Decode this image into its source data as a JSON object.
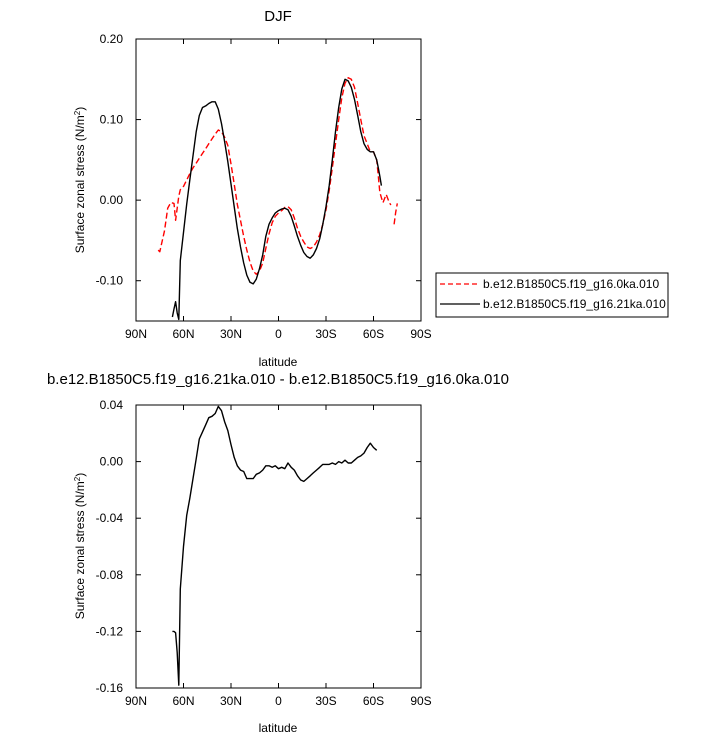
{
  "chart_data": [
    {
      "type": "line",
      "title": "DJF",
      "xlabel": "latitude",
      "ylabel": "Surface zonal stress (N/m²)",
      "ylabel_base": "Surface zonal stress (N/m",
      "ylabel_sup": "2",
      "ylabel_close": ")",
      "xlim": [
        90,
        -90
      ],
      "ylim": [
        -0.15,
        0.2
      ],
      "xticks": [
        90,
        60,
        30,
        0,
        -30,
        -60,
        -90
      ],
      "xtick_labels": [
        "90N",
        "60N",
        "30N",
        "0",
        "30S",
        "60S",
        "90S"
      ],
      "yticks": [
        0.2,
        0.1,
        0.0,
        -0.1
      ],
      "ytick_labels": [
        "0.20",
        "0.10",
        "0.00",
        "-0.10"
      ],
      "grid": false,
      "legend_position": "right",
      "series": [
        {
          "name": "b.e12.B1850C5.f19_g16.0ka.010",
          "color": "#ff0000",
          "dash": "dashed",
          "x": [
            76,
            75,
            72,
            70,
            68,
            66,
            65,
            64,
            63,
            62,
            60,
            58,
            56,
            54,
            52,
            50,
            48,
            46,
            44,
            42,
            40,
            38,
            36,
            34,
            32,
            30,
            28,
            26,
            24,
            22,
            20,
            18,
            16,
            14,
            12,
            10,
            8,
            6,
            4,
            2,
            0,
            -2,
            -4,
            -6,
            -8,
            -10,
            -12,
            -14,
            -16,
            -18,
            -20,
            -22,
            -24,
            -26,
            -28,
            -30,
            -32,
            -34,
            -36,
            -38,
            -40,
            -42,
            -44,
            -46,
            -48,
            -50,
            -52,
            -54,
            -56,
            -58,
            -60,
            -62,
            -63,
            -64,
            -65,
            -66,
            -67,
            -68,
            -70,
            -71,
            -72,
            -73,
            -74,
            -75
          ],
          "y": [
            -0.062,
            -0.064,
            -0.038,
            -0.01,
            -0.003,
            -0.004,
            -0.025,
            -0.01,
            0.005,
            0.013,
            0.017,
            0.025,
            0.033,
            0.04,
            0.046,
            0.052,
            0.058,
            0.064,
            0.07,
            0.076,
            0.082,
            0.087,
            0.085,
            0.078,
            0.068,
            0.045,
            0.02,
            -0.005,
            -0.025,
            -0.045,
            -0.062,
            -0.077,
            -0.088,
            -0.092,
            -0.088,
            -0.078,
            -0.06,
            -0.042,
            -0.028,
            -0.02,
            -0.016,
            -0.013,
            -0.009,
            -0.008,
            -0.012,
            -0.022,
            -0.035,
            -0.045,
            -0.052,
            -0.058,
            -0.06,
            -0.058,
            -0.052,
            -0.043,
            -0.03,
            -0.012,
            0.012,
            0.04,
            0.07,
            0.1,
            0.127,
            0.145,
            0.152,
            0.15,
            0.14,
            0.12,
            0.1,
            0.08,
            0.07,
            0.06,
            0.06,
            0.05,
            0.03,
            0.01,
            0.003,
            -0.003,
            0.002,
            0.007,
            -0.003,
            -0.006,
            null,
            -0.03,
            -0.015,
            -0.004
          ]
        },
        {
          "name": "b.e12.B1850C5.f19_g16.21ka.010",
          "color": "#000000",
          "dash": "solid",
          "x": [
            67,
            66,
            65,
            64,
            63,
            62,
            60,
            58,
            56,
            54,
            52,
            50,
            48,
            46,
            44,
            42,
            40,
            38,
            36,
            34,
            32,
            30,
            28,
            26,
            24,
            22,
            20,
            18,
            16,
            14,
            12,
            10,
            8,
            6,
            4,
            2,
            0,
            -2,
            -4,
            -6,
            -8,
            -10,
            -12,
            -14,
            -16,
            -18,
            -20,
            -22,
            -24,
            -26,
            -28,
            -30,
            -32,
            -34,
            -36,
            -38,
            -40,
            -42,
            -44,
            -46,
            -48,
            -50,
            -52,
            -54,
            -56,
            -58,
            -60,
            -62,
            -63,
            -64,
            -65
          ],
          "y": [
            -0.145,
            -0.135,
            -0.126,
            -0.14,
            -0.148,
            -0.075,
            -0.04,
            -0.005,
            0.025,
            0.055,
            0.085,
            0.105,
            0.115,
            0.117,
            0.12,
            0.122,
            0.122,
            0.113,
            0.095,
            0.072,
            0.048,
            0.02,
            -0.008,
            -0.035,
            -0.058,
            -0.078,
            -0.093,
            -0.102,
            -0.104,
            -0.098,
            -0.085,
            -0.068,
            -0.045,
            -0.03,
            -0.022,
            -0.016,
            -0.013,
            -0.011,
            -0.01,
            -0.012,
            -0.02,
            -0.032,
            -0.045,
            -0.056,
            -0.065,
            -0.07,
            -0.072,
            -0.068,
            -0.06,
            -0.048,
            -0.03,
            -0.008,
            0.018,
            0.05,
            0.085,
            0.115,
            0.138,
            0.15,
            0.148,
            0.14,
            0.125,
            0.105,
            0.085,
            0.07,
            0.063,
            0.06,
            0.06,
            0.05,
            0.04,
            0.03,
            0.018
          ]
        }
      ]
    },
    {
      "type": "line",
      "title": "b.e12.B1850C5.f19_g16.21ka.010 - b.e12.B1850C5.f19_g16.0ka.010",
      "xlabel": "latitude",
      "ylabel": "Surface zonal stress (N/m²)",
      "ylabel_base": "Surface zonal stress (N/m",
      "ylabel_sup": "2",
      "ylabel_close": ")",
      "xlim": [
        90,
        -90
      ],
      "ylim": [
        -0.16,
        0.04
      ],
      "xticks": [
        90,
        60,
        30,
        0,
        -30,
        -60,
        -90
      ],
      "xtick_labels": [
        "90N",
        "60N",
        "30N",
        "0",
        "30S",
        "60S",
        "90S"
      ],
      "yticks": [
        0.04,
        0.0,
        -0.04,
        -0.08,
        -0.12,
        -0.16
      ],
      "ytick_labels": [
        "0.04",
        "0.00",
        "-0.04",
        "-0.08",
        "-0.12",
        "-0.16"
      ],
      "grid": false,
      "series": [
        {
          "color": "#000000",
          "dash": "solid",
          "x": [
            67,
            66,
            65,
            64,
            63,
            62,
            60,
            58,
            56,
            54,
            52,
            50,
            48,
            46,
            44,
            42,
            40,
            38,
            36,
            34,
            32,
            30,
            28,
            26,
            24,
            22,
            20,
            18,
            16,
            14,
            12,
            10,
            8,
            6,
            4,
            2,
            0,
            -2,
            -4,
            -6,
            -8,
            -10,
            -12,
            -14,
            -16,
            -18,
            -20,
            -22,
            -24,
            -26,
            -28,
            -30,
            -32,
            -34,
            -36,
            -38,
            -40,
            -42,
            -44,
            -46,
            -48,
            -50,
            -52,
            -54,
            -56,
            -58,
            -60,
            -62
          ],
          "y": [
            -0.12,
            -0.12,
            -0.121,
            -0.135,
            -0.158,
            -0.09,
            -0.06,
            -0.038,
            -0.026,
            -0.012,
            0.002,
            0.016,
            0.021,
            0.026,
            0.031,
            0.032,
            0.034,
            0.039,
            0.036,
            0.028,
            0.022,
            0.012,
            0.003,
            -0.003,
            -0.006,
            -0.007,
            -0.012,
            -0.012,
            -0.012,
            -0.009,
            -0.008,
            -0.006,
            -0.003,
            -0.003,
            -0.004,
            -0.003,
            -0.005,
            -0.004,
            -0.005,
            -0.001,
            -0.004,
            -0.006,
            -0.01,
            -0.013,
            -0.014,
            -0.012,
            -0.01,
            -0.008,
            -0.006,
            -0.004,
            -0.002,
            -0.002,
            -0.002,
            -0.001,
            -0.002,
            0.0,
            -0.001,
            0.001,
            -0.001,
            -0.001,
            0.001,
            0.003,
            0.004,
            0.006,
            0.01,
            0.013,
            0.01,
            0.008
          ]
        }
      ]
    }
  ]
}
